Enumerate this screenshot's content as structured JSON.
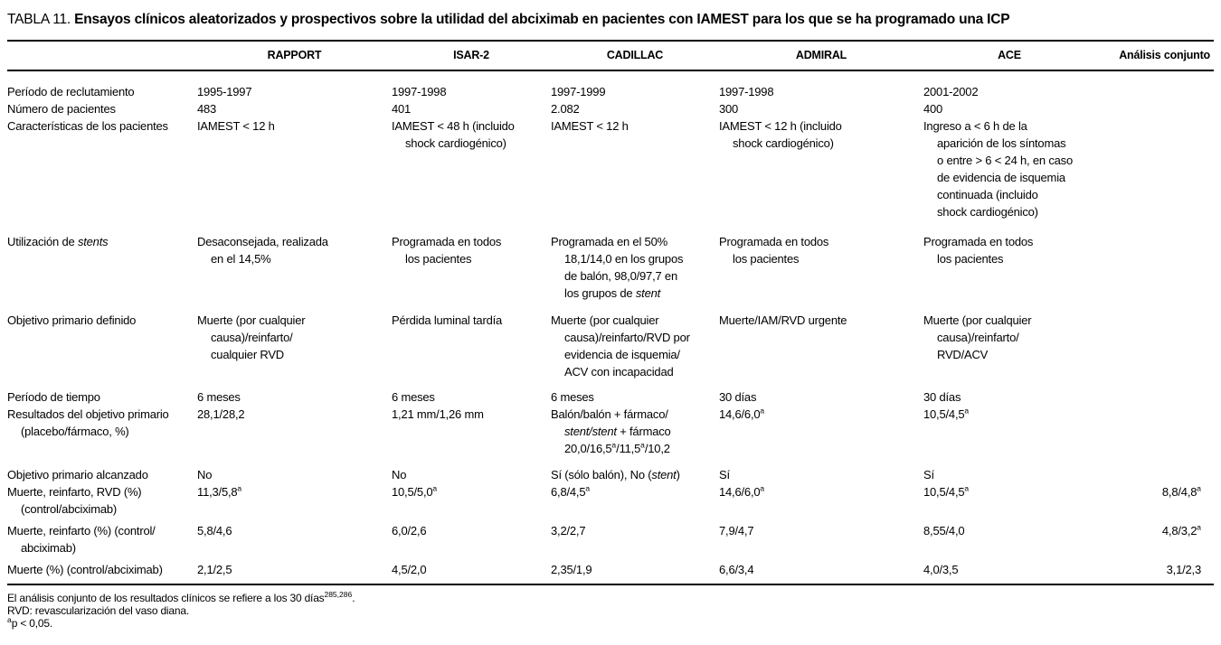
{
  "title": {
    "label": "TABLA 11.",
    "text": "Ensayos clínicos aleatorizados y prospectivos sobre la utilidad del abciximab en pacientes con IAMEST para los que se ha programado una ICP"
  },
  "table": {
    "columns": [
      "",
      "RAPPORT",
      "ISAR-2",
      "CADILLAC",
      "ADMIRAL",
      "ACE",
      "Análisis conjunto"
    ],
    "rows": [
      {
        "label": "Período de reclutamiento",
        "cells": [
          "1995-1997",
          "1997-1998",
          "1997-1999",
          "1997-1998",
          "2001-2002",
          ""
        ]
      },
      {
        "label": "Número de pacientes",
        "cells": [
          "483",
          "401",
          "2.082",
          "300",
          "400",
          ""
        ]
      },
      {
        "label": "Características de los pacientes",
        "cells": [
          "IAMEST < 12 h",
          "IAMEST < 48 h (incluido\nshock cardiogénico)",
          "IAMEST < 12 h",
          "IAMEST < 12 h (incluido\nshock cardiogénico)",
          "Ingreso a < 6 h de la\naparición de los síntomas\no entre > 6 < 24 h, en caso\nde evidencia de isquemia\ncontinuada (incluido\nshock cardiogénico)",
          ""
        ]
      },
      {
        "label": "Utilización de *stents*",
        "cells": [
          "Desaconsejada, realizada\nen el 14,5%",
          "Programada en todos\nlos pacientes",
          "Programada en el 50%\n18,1/14,0 en los grupos\nde balón, 98,0/97,7 en\nlos grupos de *stent*",
          "Programada en todos\nlos pacientes",
          "Programada en todos\nlos pacientes",
          ""
        ]
      },
      {
        "label": "Objetivo primario definido",
        "cells": [
          "Muerte (por cualquier\ncausa)/reinfarto/\ncualquier RVD",
          "Pérdida luminal tardía",
          "Muerte (por cualquier\ncausa)/reinfarto/RVD por\nevidencia de isquemia/\nACV con incapacidad",
          "Muerte/IAM/RVD urgente",
          "Muerte (por cualquier\ncausa)/reinfarto/\nRVD/ACV",
          ""
        ]
      },
      {
        "label": "Período de tiempo",
        "cells": [
          "6 meses",
          "6 meses",
          "6 meses",
          "30 días",
          "30 días",
          ""
        ]
      },
      {
        "label": "Resultados del objetivo primario\n(placebo/fármaco, %)",
        "cells": [
          "28,1/28,2",
          "1,21 mm/1,26 mm",
          "Balón/balón + fármaco/\n*stent/stent* + fármaco\n20,0/16,5^a^/11,5^a^/10,2",
          "14,6/6,0^a^",
          "10,5/4,5^a^",
          ""
        ]
      },
      {
        "label": "Objetivo primario alcanzado",
        "cells": [
          "No",
          "No",
          "Sí (sólo balón), No (*stent*)",
          "Sí",
          "Sí",
          ""
        ]
      },
      {
        "label": "Muerte, reinfarto, RVD (%)\n(control/abciximab)",
        "cells": [
          "11,3/5,8^a^",
          "10,5/5,0^a^",
          "6,8/4,5^a^",
          "14,6/6,0^a^",
          "10,5/4,5^a^",
          "8,8/4,8^a^"
        ]
      },
      {
        "label": "Muerte, reinfarto (%) (control/\nabciximab)",
        "cells": [
          "5,8/4,6",
          "6,0/2,6",
          "3,2/2,7",
          "7,9/4,7",
          "8,55/4,0",
          "4,8/3,2^a^"
        ]
      },
      {
        "label": "Muerte (%) (control/abciximab)",
        "cells": [
          "2,1/2,5",
          "4,5/2,0",
          "2,35/1,9",
          "6,6/3,4",
          "4,0/3,5",
          "3,1/2,3"
        ]
      }
    ]
  },
  "footnotes": [
    "El análisis conjunto de los resultados clínicos se refiere a los 30 días^285,286^.",
    "RVD: revascularización del vaso diana.",
    "^a^p < 0,05."
  ]
}
